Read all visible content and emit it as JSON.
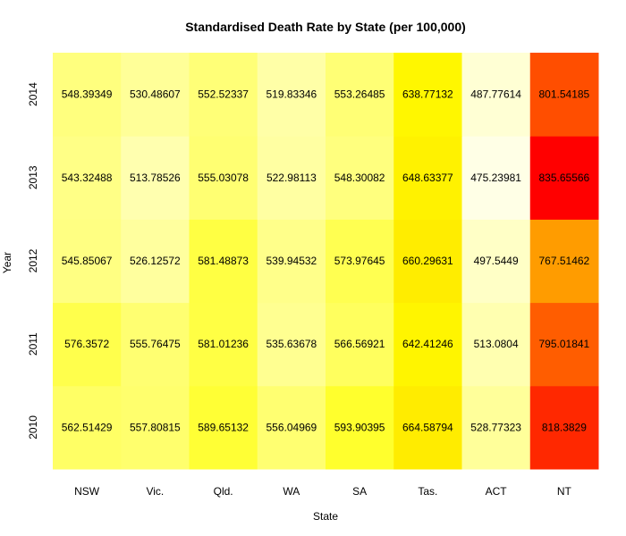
{
  "chart_data": {
    "type": "heatmap",
    "title": "Standardised Death Rate by State (per 100,000)",
    "xlabel": "State",
    "ylabel": "Year",
    "x": [
      "NSW",
      "Vic.",
      "Qld.",
      "WA",
      "SA",
      "Tas.",
      "ACT",
      "NT"
    ],
    "y": [
      "2010",
      "2011",
      "2012",
      "2013",
      "2014"
    ],
    "values": [
      [
        562.51429,
        557.80815,
        589.65132,
        556.04969,
        593.90395,
        664.58794,
        528.77323,
        818.3829
      ],
      [
        576.3572,
        555.76475,
        581.01236,
        535.63678,
        566.56921,
        642.41246,
        513.0804,
        795.01841
      ],
      [
        545.85067,
        526.12572,
        581.48873,
        539.94532,
        573.97645,
        660.29631,
        497.5449,
        767.51462
      ],
      [
        543.32488,
        513.78526,
        555.03078,
        522.98113,
        548.30082,
        648.63377,
        475.23981,
        835.65566
      ],
      [
        548.39349,
        530.48607,
        552.52337,
        519.83346,
        553.26485,
        638.77132,
        487.77614,
        801.54185
      ]
    ],
    "value_labels": [
      [
        "562.51429",
        "557.80815",
        "589.65132",
        "556.04969",
        "593.90395",
        "664.58794",
        "528.77323",
        "818.3829"
      ],
      [
        "576.3572",
        "555.76475",
        "581.01236",
        "535.63678",
        "566.56921",
        "642.41246",
        "513.0804",
        "795.01841"
      ],
      [
        "545.85067",
        "526.12572",
        "581.48873",
        "539.94532",
        "573.97645",
        "660.29631",
        "497.5449",
        "767.51462"
      ],
      [
        "543.32488",
        "513.78526",
        "555.03078",
        "522.98113",
        "548.30082",
        "648.63377",
        "475.23981",
        "835.65566"
      ],
      [
        "548.39349",
        "530.48607",
        "552.52337",
        "519.83346",
        "553.26485",
        "638.77132",
        "487.77614",
        "801.54185"
      ]
    ],
    "colorscale": [
      "#ffffe6",
      "#ffff80",
      "#ffff00",
      "#ffe000",
      "#ffa500",
      "#ff0000"
    ],
    "grid": false,
    "legend": "none"
  }
}
